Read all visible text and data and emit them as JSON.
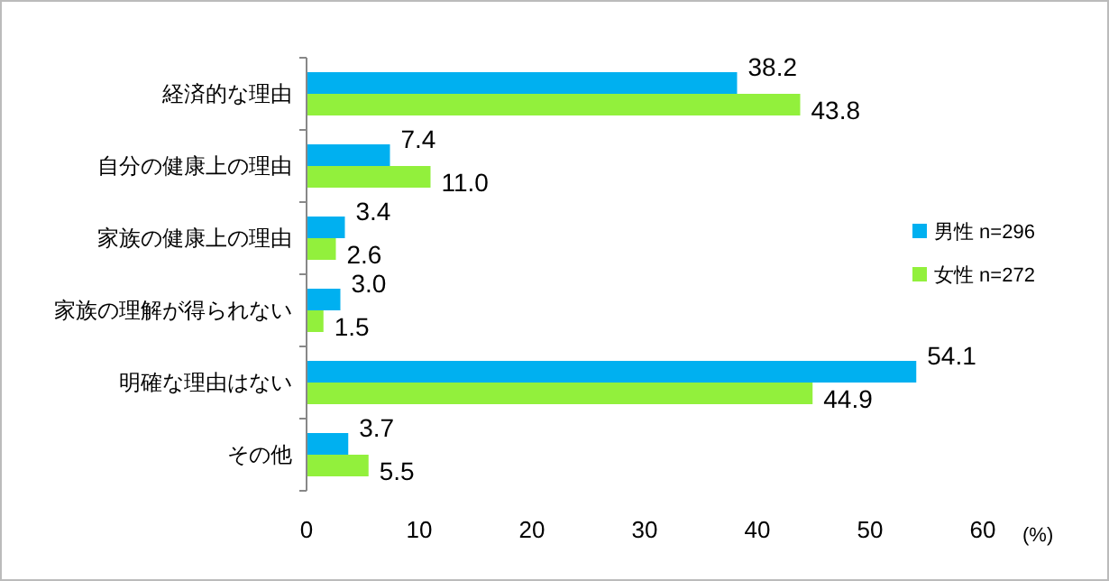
{
  "chart_data": {
    "type": "bar",
    "orientation": "horizontal",
    "categories": [
      "経済的な理由",
      "自分の健康上の理由",
      "家族の健康上の理由",
      "家族の理解が得られない",
      "明確な理由はない",
      "その他"
    ],
    "series": [
      {
        "name": "男性 n=296",
        "color": "#00b0f0",
        "values": [
          38.2,
          7.4,
          3.4,
          3.0,
          54.1,
          3.7
        ],
        "value_labels": [
          "38.2",
          "7.4",
          "3.4",
          "3.0",
          "54.1",
          "3.7"
        ]
      },
      {
        "name": "女性 n=272",
        "color": "#92f03c",
        "values": [
          43.8,
          11.0,
          2.6,
          1.5,
          44.9,
          5.5
        ],
        "value_labels": [
          "43.8",
          "11.0",
          "2.6",
          "1.5",
          "44.9",
          "5.5"
        ]
      }
    ],
    "xlim": [
      0,
      60
    ],
    "xticks": [
      0,
      10,
      20,
      30,
      40,
      50,
      60
    ],
    "xlabel": "(%)",
    "legend": "right"
  }
}
